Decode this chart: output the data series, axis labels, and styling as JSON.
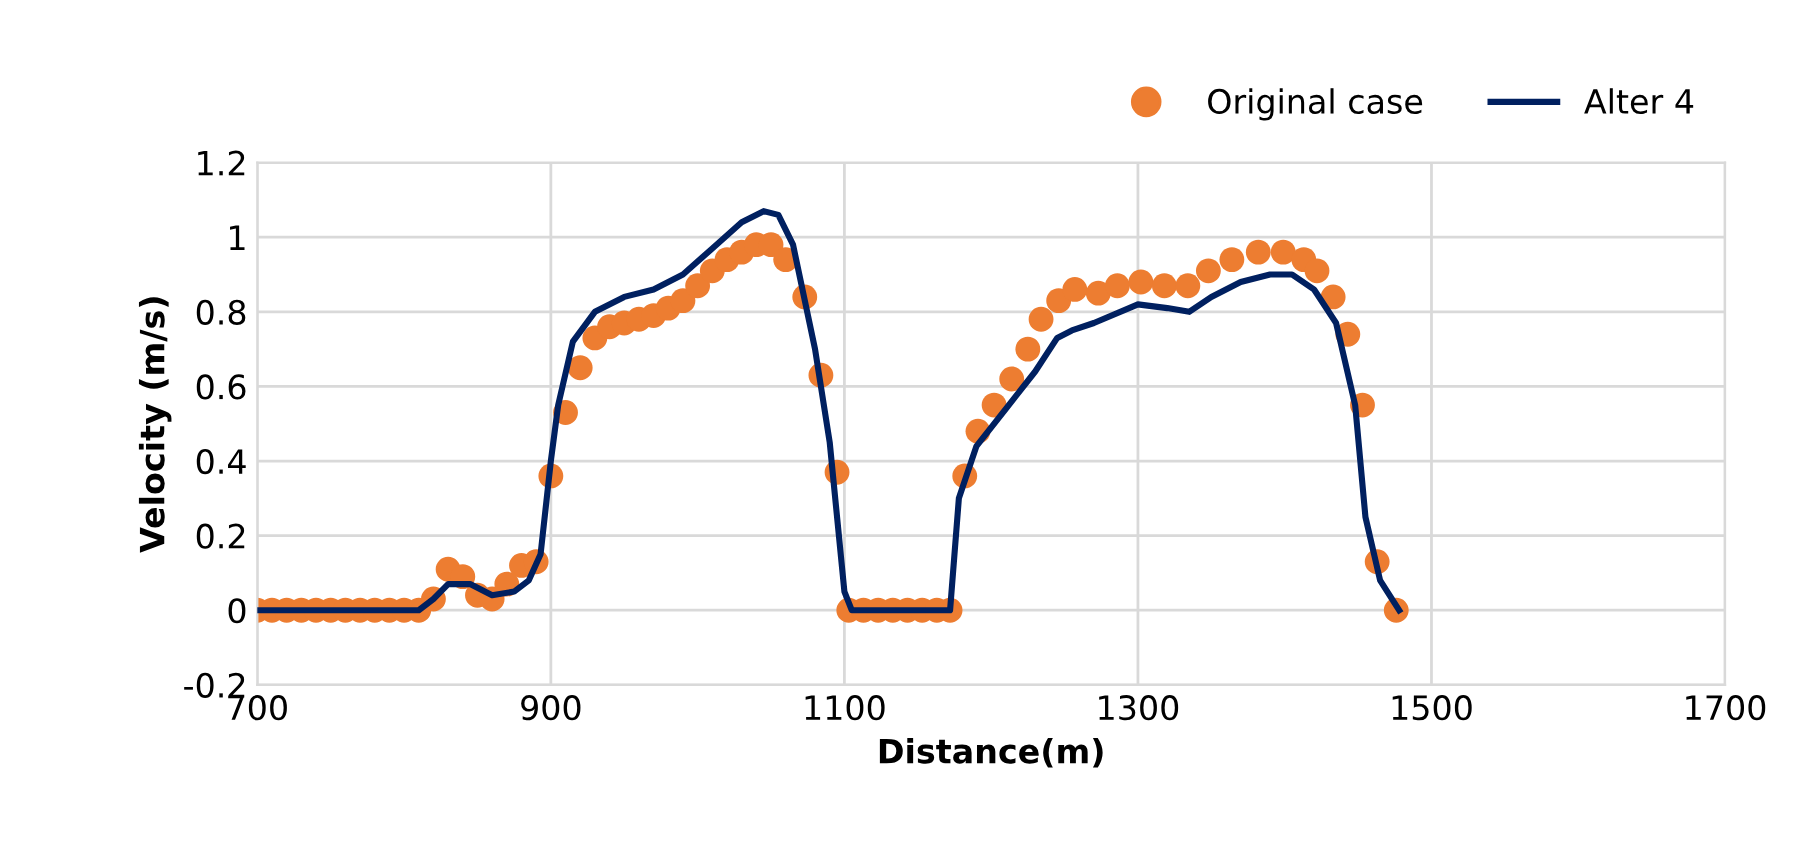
{
  "chart_data": {
    "type": "scatter",
    "xlabel": "Distance(m)",
    "ylabel": "Velocity (m/s)",
    "xlim": [
      700,
      1700
    ],
    "xticks": [
      700,
      900,
      1100,
      1300,
      1500,
      1700
    ],
    "ylim": [
      -0.2,
      1.2
    ],
    "yticks": [
      -0.2,
      0,
      0.2,
      0.4,
      0.6,
      0.8,
      1,
      1.2
    ],
    "grid": true,
    "legend": "top right",
    "series": [
      {
        "name": "Original case",
        "marker": "circle",
        "color": "#ed7d31",
        "x": [
          700,
          710,
          720,
          730,
          740,
          750,
          760,
          770,
          780,
          790,
          800,
          810,
          820,
          830,
          840,
          850,
          860,
          870,
          880,
          890,
          900,
          910,
          920,
          930,
          940,
          950,
          960,
          970,
          980,
          990,
          1000,
          1010,
          1020,
          1030,
          1040,
          1050,
          1060,
          1073,
          1084,
          1095,
          1103,
          1113,
          1123,
          1133,
          1143,
          1153,
          1163,
          1172,
          1182,
          1191,
          1202,
          1214,
          1225,
          1234,
          1246,
          1257,
          1273,
          1286,
          1302,
          1318,
          1334,
          1348,
          1364,
          1382,
          1399,
          1413,
          1422,
          1433,
          1443,
          1453,
          1463,
          1476
        ],
        "values": [
          0,
          0,
          0,
          0,
          0,
          0,
          0,
          0,
          0,
          0,
          0,
          0,
          0.03,
          0.11,
          0.09,
          0.04,
          0.03,
          0.07,
          0.12,
          0.13,
          0.36,
          0.53,
          0.65,
          0.73,
          0.76,
          0.77,
          0.78,
          0.79,
          0.81,
          0.83,
          0.87,
          0.91,
          0.94,
          0.96,
          0.98,
          0.98,
          0.94,
          0.84,
          0.63,
          0.37,
          0,
          0,
          0,
          0,
          0,
          0,
          0,
          0,
          0.36,
          0.48,
          0.55,
          0.62,
          0.7,
          0.78,
          0.83,
          0.86,
          0.85,
          0.87,
          0.88,
          0.87,
          0.87,
          0.91,
          0.94,
          0.96,
          0.96,
          0.94,
          0.91,
          0.84,
          0.74,
          0.55,
          0.13,
          0
        ]
      },
      {
        "name": "Alter 4",
        "type": "line",
        "marker": "none",
        "line_style": "solid",
        "color": "#002060",
        "x": [
          700,
          810,
          820,
          830,
          845,
          860,
          875,
          885,
          893,
          900,
          905,
          915,
          930,
          950,
          970,
          990,
          1010,
          1030,
          1045,
          1055,
          1065,
          1080,
          1090,
          1100,
          1105,
          1165,
          1172,
          1178,
          1190,
          1210,
          1230,
          1245,
          1255,
          1270,
          1300,
          1320,
          1335,
          1350,
          1370,
          1390,
          1405,
          1420,
          1435,
          1448,
          1455,
          1465,
          1478
        ],
        "values": [
          0,
          0,
          0.03,
          0.07,
          0.07,
          0.04,
          0.05,
          0.08,
          0.15,
          0.4,
          0.55,
          0.72,
          0.8,
          0.84,
          0.86,
          0.9,
          0.97,
          1.04,
          1.07,
          1.06,
          0.98,
          0.7,
          0.45,
          0.05,
          0,
          0,
          0,
          0.3,
          0.44,
          0.54,
          0.64,
          0.73,
          0.75,
          0.77,
          0.82,
          0.81,
          0.8,
          0.84,
          0.88,
          0.9,
          0.9,
          0.86,
          0.77,
          0.55,
          0.25,
          0.08,
          0
        ]
      }
    ]
  }
}
